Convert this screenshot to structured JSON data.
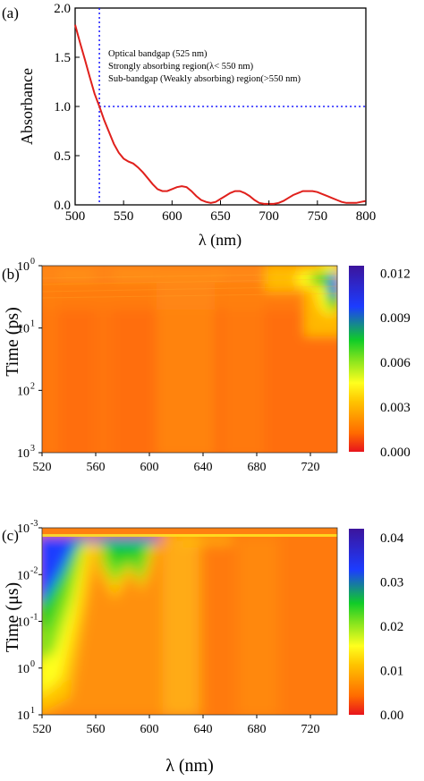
{
  "chart_data": [
    {
      "panel_label": "(a)",
      "type": "line",
      "xlabel": "λ (nm)",
      "ylabel": "Absorbance",
      "xlim": [
        500,
        800
      ],
      "ylim": [
        0.0,
        2.0
      ],
      "xticks": [
        "500",
        "550",
        "600",
        "650",
        "700",
        "750",
        "800"
      ],
      "yticks": [
        "0.0",
        "0.5",
        "1.0",
        "1.5",
        "2.0"
      ],
      "series": [
        {
          "color": "#e0201c",
          "x": [
            500,
            505,
            510,
            515,
            520,
            525,
            530,
            535,
            540,
            545,
            550,
            555,
            560,
            565,
            570,
            575,
            580,
            585,
            590,
            595,
            600,
            605,
            610,
            615,
            620,
            625,
            630,
            635,
            640,
            645,
            650,
            655,
            660,
            665,
            670,
            675,
            680,
            685,
            690,
            695,
            700,
            705,
            710,
            715,
            720,
            725,
            730,
            735,
            740,
            745,
            750,
            755,
            760,
            765,
            770,
            775,
            780,
            785,
            790,
            795,
            800
          ],
          "y": [
            1.83,
            1.65,
            1.48,
            1.3,
            1.13,
            1.0,
            0.86,
            0.74,
            0.62,
            0.53,
            0.47,
            0.44,
            0.42,
            0.38,
            0.33,
            0.27,
            0.21,
            0.16,
            0.14,
            0.14,
            0.16,
            0.18,
            0.19,
            0.18,
            0.14,
            0.09,
            0.05,
            0.03,
            0.02,
            0.03,
            0.06,
            0.09,
            0.12,
            0.14,
            0.14,
            0.12,
            0.09,
            0.05,
            0.02,
            0.01,
            0.01,
            0.01,
            0.02,
            0.04,
            0.07,
            0.1,
            0.12,
            0.14,
            0.14,
            0.14,
            0.13,
            0.11,
            0.09,
            0.07,
            0.05,
            0.03,
            0.02,
            0.02,
            0.02,
            0.03,
            0.04
          ]
        }
      ],
      "reference_lines": {
        "vertical_x": 525,
        "horizontal_y": 1.0,
        "color": "#1a1aff",
        "style": "dotted"
      },
      "annotations": [
        "Optical bandgap (525 nm)",
        "Strongly absorbing region(λ< 550 nm)",
        "Sub-bandgap (Weakly absorbing) region(>550 nm)"
      ]
    },
    {
      "panel_label": "(b)",
      "type": "heatmap",
      "xlabel": "",
      "ylabel": "Time (ps)",
      "xlim": [
        520,
        740
      ],
      "xticks": [
        "520",
        "560",
        "600",
        "640",
        "680",
        "720"
      ],
      "yscale": "log",
      "yticks": [
        {
          "base": "10",
          "exp": "0"
        },
        {
          "base": "10",
          "exp": "1"
        },
        {
          "base": "10",
          "exp": "2"
        },
        {
          "base": "10",
          "exp": "3"
        }
      ],
      "colorbar": {
        "ticks": [
          "0.012",
          "0.009",
          "0.006",
          "0.003",
          "0.000"
        ],
        "range": [
          0.0,
          0.0125
        ]
      }
    },
    {
      "panel_label": "(c)",
      "type": "heatmap",
      "xlabel": "λ (nm)",
      "ylabel": "Time (μs)",
      "xlim": [
        520,
        740
      ],
      "xticks": [
        "520",
        "560",
        "600",
        "640",
        "680",
        "720"
      ],
      "yscale": "log",
      "yticks": [
        {
          "base": "10",
          "exp": "-3"
        },
        {
          "base": "10",
          "exp": "-2"
        },
        {
          "base": "10",
          "exp": "-1"
        },
        {
          "base": "10",
          "exp": "0"
        },
        {
          "base": "10",
          "exp": "1"
        }
      ],
      "colorbar": {
        "ticks": [
          "0.04",
          "0.03",
          "0.02",
          "0.01",
          "0.00"
        ],
        "range": [
          0.0,
          0.042
        ]
      }
    }
  ],
  "colormap_stops": [
    "#e8141c",
    "#ff6a00",
    "#ffc400",
    "#ffff1e",
    "#7ee21e",
    "#10cc28",
    "#1c3cff",
    "#3c149c"
  ]
}
